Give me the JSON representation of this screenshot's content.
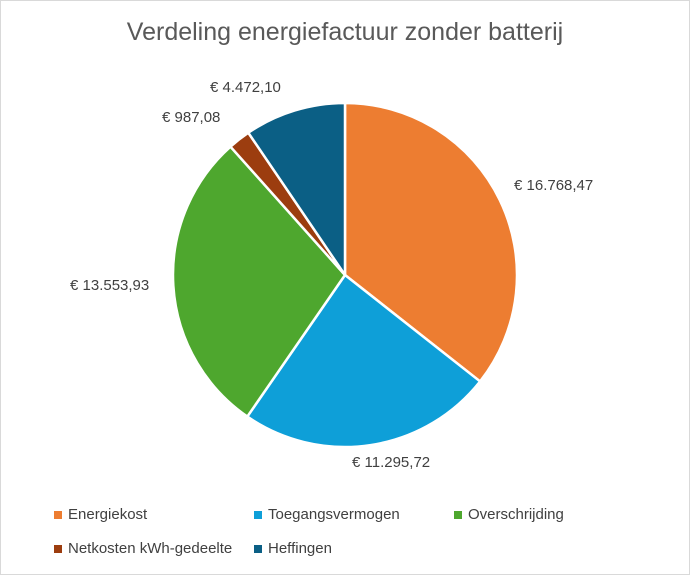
{
  "chart_data": {
    "type": "pie",
    "title": "Verdeling energiefactuur zonder batterij",
    "legend_position": "bottom",
    "slices": [
      {
        "name": "Energiekost",
        "value": 16768.47,
        "label": "€ 16.768,47",
        "color": "#ED7D31"
      },
      {
        "name": "Toegangsvermogen",
        "value": 11295.72,
        "label": "€ 11.295,72",
        "color": "#0E9FD8"
      },
      {
        "name": "Overschrijding",
        "value": 13553.93,
        "label": "€ 13.553,93",
        "color": "#4EA72E"
      },
      {
        "name": "Netkosten kWh-gedeelte",
        "value": 987.08,
        "label": "€ 987,08",
        "color": "#9C3D0F"
      },
      {
        "name": "Heffingen",
        "value": 4472.1,
        "label": "€ 4.472,10",
        "color": "#0B5F85"
      }
    ]
  }
}
